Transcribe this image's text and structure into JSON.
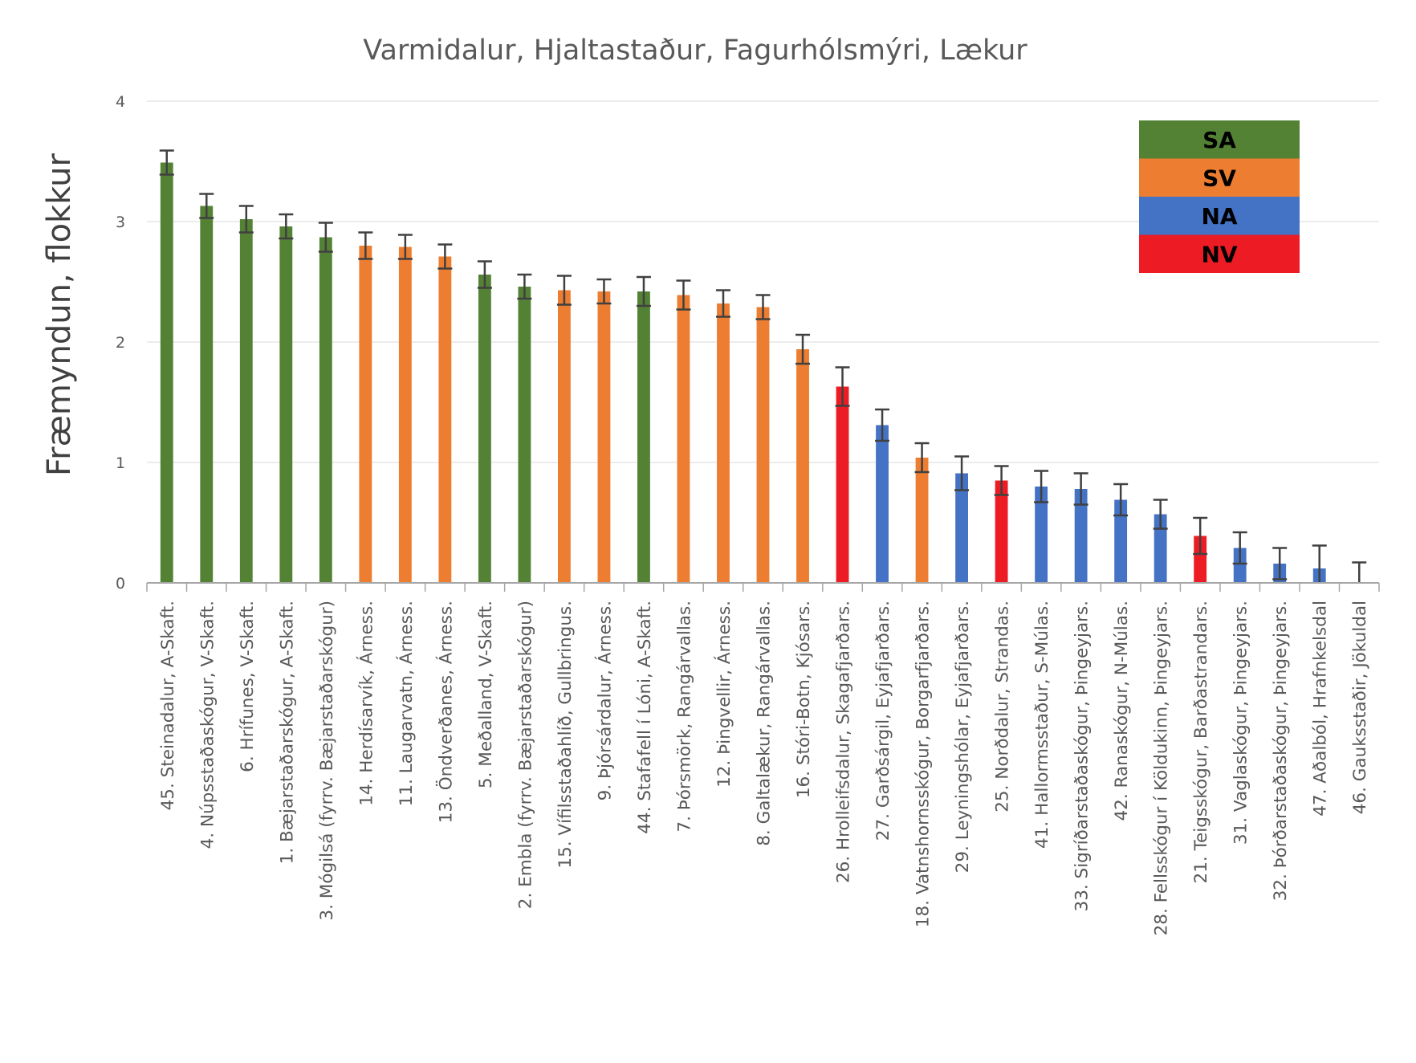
{
  "chart_data": {
    "type": "bar",
    "title": "Varmidalur, Hjaltastaður, Fagurhólsmýri, Lækur",
    "xlabel": "",
    "ylabel": "Fræmyndun, flokkur",
    "ylim": [
      0,
      4
    ],
    "yticks": [
      "0",
      "1",
      "2",
      "3",
      "4"
    ],
    "grid": true,
    "legend_position": "top-right",
    "legend": [
      {
        "label": "SA",
        "color": "#548235"
      },
      {
        "label": "SV",
        "color": "#ED7D31"
      },
      {
        "label": "NA",
        "color": "#4472C4"
      },
      {
        "label": "NV",
        "color": "#ED1C24"
      }
    ],
    "categories": [
      "45. Steinadalur, A-Skaft.",
      "4. Núpsstaðaskógur, V-Skaft.",
      "6. Hrífunes, V-Skaft.",
      "1. Bæjarstaðarskógur, A-Skaft.",
      "3. Mógilsá (fyrrv. Bæjarstaðarskógur)",
      "14. Herdísarvík, Árness.",
      "11. Laugarvatn, Árness.",
      "13. Öndverðanes, Árness.",
      "5. Meðalland, V-Skaft.",
      "2. Embla (fyrrv. Bæjarstaðarskógur)",
      "15. Vífilsstaðahlíð, Gullbringus.",
      "9. Þjórsárdalur, Árness.",
      "44. Stafafell í Lóni, A-Skaft.",
      "7. Þórsmörk, Rangárvallas.",
      "12. Þingvellir, Árness.",
      "8. Galtalækur, Rangárvallas.",
      "16. Stóri-Botn, Kjósars.",
      "26. Hrolleifsdalur, Skagafjarðars.",
      "27. Garðsárgil, Eyjafjarðars.",
      "18. Vatnshornsskógur, Borgarfjarðars.",
      "29. Leyningshólar, Eyjafjarðars.",
      "25. Norðdalur, Strandas.",
      "41. Hallormsstaður, S-Múlas.",
      "33. Sigríðarstaðaskógur, Þingeyjars.",
      "42. Ranaskógur, N-Múlas.",
      "28. Fellsskógur í Köldukinn, Þingeyjars.",
      "21. Teigsskógur, Barðastrandars.",
      "31. Vaglaskógur, Þingeyjars.",
      "32. Þórðarstaðaskógur, Þingeyjars.",
      "47. Aðalból, Hrafnkelsdal",
      "46. Gauksstaðir, Jökuldal"
    ],
    "values": [
      3.49,
      3.13,
      3.02,
      2.96,
      2.87,
      2.8,
      2.79,
      2.71,
      2.56,
      2.46,
      2.43,
      2.42,
      2.42,
      2.39,
      2.32,
      2.29,
      1.94,
      1.63,
      1.31,
      1.04,
      0.91,
      0.85,
      0.8,
      0.78,
      0.69,
      0.57,
      0.39,
      0.29,
      0.16,
      0.12,
      0.0
    ],
    "error": [
      0.1,
      0.1,
      0.11,
      0.1,
      0.12,
      0.11,
      0.1,
      0.1,
      0.11,
      0.1,
      0.12,
      0.1,
      0.12,
      0.12,
      0.11,
      0.1,
      0.12,
      0.16,
      0.13,
      0.12,
      0.14,
      0.12,
      0.13,
      0.13,
      0.13,
      0.12,
      0.15,
      0.13,
      0.13,
      0.19,
      0.17
    ],
    "groups": [
      "SA",
      "SA",
      "SA",
      "SA",
      "SA",
      "SV",
      "SV",
      "SV",
      "SA",
      "SA",
      "SV",
      "SV",
      "SA",
      "SV",
      "SV",
      "SV",
      "SV",
      "NV",
      "NA",
      "SV",
      "NA",
      "NV",
      "NA",
      "NA",
      "NA",
      "NA",
      "NV",
      "NA",
      "NA",
      "NA",
      "NA"
    ]
  }
}
